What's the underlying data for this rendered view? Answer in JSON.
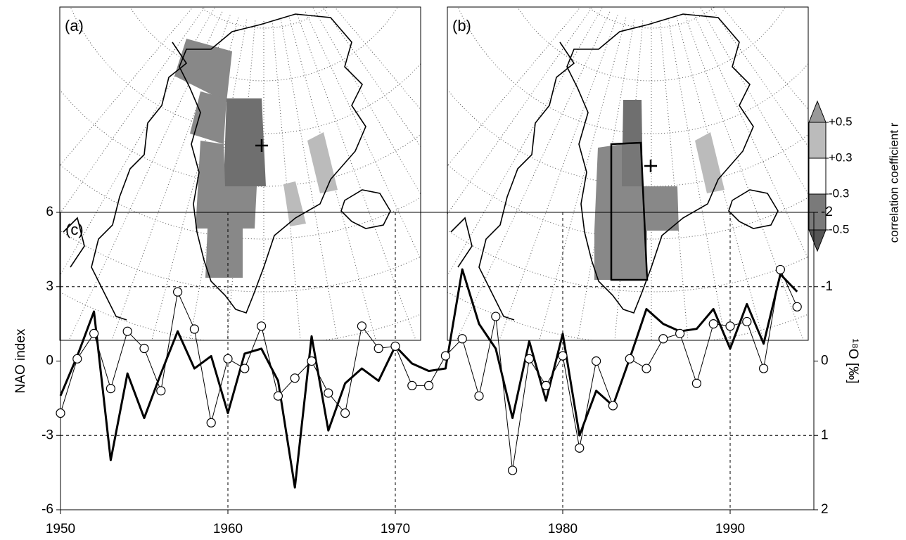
{
  "maps": {
    "panels": [
      "(a)",
      "(b)"
    ]
  },
  "colorbar": {
    "label": "correlation coefficient r",
    "ticks": [
      {
        "value": 0.5,
        "label": "+0.5"
      },
      {
        "value": 0.3,
        "label": "+0.3"
      },
      -0.3,
      -0.5
    ],
    "colors": [
      "#999999",
      "#bbbbbb",
      "#ffffff",
      "#7a7a7a",
      "#555555"
    ]
  },
  "chart_data": {
    "type": "line",
    "panel": "(c)",
    "ylabel": "NAO index",
    "y2label": "¹⁸O [‰]",
    "x": [
      1950,
      1951,
      1952,
      1953,
      1954,
      1955,
      1956,
      1957,
      1958,
      1959,
      1960,
      1961,
      1962,
      1963,
      1964,
      1965,
      1966,
      1967,
      1968,
      1969,
      1970,
      1971,
      1972,
      1973,
      1974,
      1975,
      1976,
      1977,
      1978,
      1979,
      1980,
      1981,
      1982,
      1983,
      1984,
      1985,
      1986,
      1987,
      1988,
      1989,
      1990,
      1991,
      1992,
      1993,
      1994
    ],
    "xlim": [
      1950,
      1995
    ],
    "xticks": [
      1950,
      1960,
      1970,
      1980,
      1990
    ],
    "ylim": [
      -6,
      6
    ],
    "yticks": [
      -6,
      -3,
      0,
      3,
      6
    ],
    "ygrid": [
      -3,
      3
    ],
    "y2lim": [
      2,
      -2
    ],
    "y2ticks": [
      2,
      1,
      0,
      -1,
      -2
    ],
    "series": [
      {
        "color": "#000000",
        "line_width": 3,
        "values": [
          -1.4,
          0.2,
          2.0,
          -4.0,
          -0.5,
          -2.3,
          -0.5,
          1.2,
          -0.3,
          0.2,
          -2.1,
          0.3,
          0.5,
          -0.8,
          -5.1,
          1.0,
          -2.8,
          -0.9,
          -0.3,
          -0.8,
          0.6,
          -0.1,
          -0.4,
          -0.3,
          3.7,
          1.5,
          0.5,
          -2.3,
          0.8,
          -1.6,
          1.1,
          -3.0,
          -1.2,
          -1.8,
          0.1,
          2.1,
          1.5,
          1.2,
          1.3,
          2.1,
          0.5,
          2.3,
          0.7,
          3.5,
          2.8
        ]
      },
      {
        "color": "#000000",
        "line_width": 1,
        "axis": "y2",
        "marker": "circle",
        "values": [
          0.7,
          -0.03,
          -0.37,
          0.37,
          -0.4,
          -0.17,
          0.4,
          -0.93,
          -0.43,
          0.83,
          -0.03,
          0.1,
          -0.47,
          0.47,
          0.23,
          0,
          0.43,
          0.7,
          -0.47,
          -0.17,
          -0.2,
          0.33,
          0.33,
          -0.07,
          -0.3,
          0.47,
          -0.6,
          1.47,
          -0.03,
          0.33,
          -0.07,
          1.17,
          0,
          0.6,
          -0.03,
          0.1,
          -0.3,
          -0.37,
          0.3,
          -0.5,
          -0.47,
          -0.53,
          0.1,
          -1.23,
          -0.73
        ]
      }
    ]
  }
}
